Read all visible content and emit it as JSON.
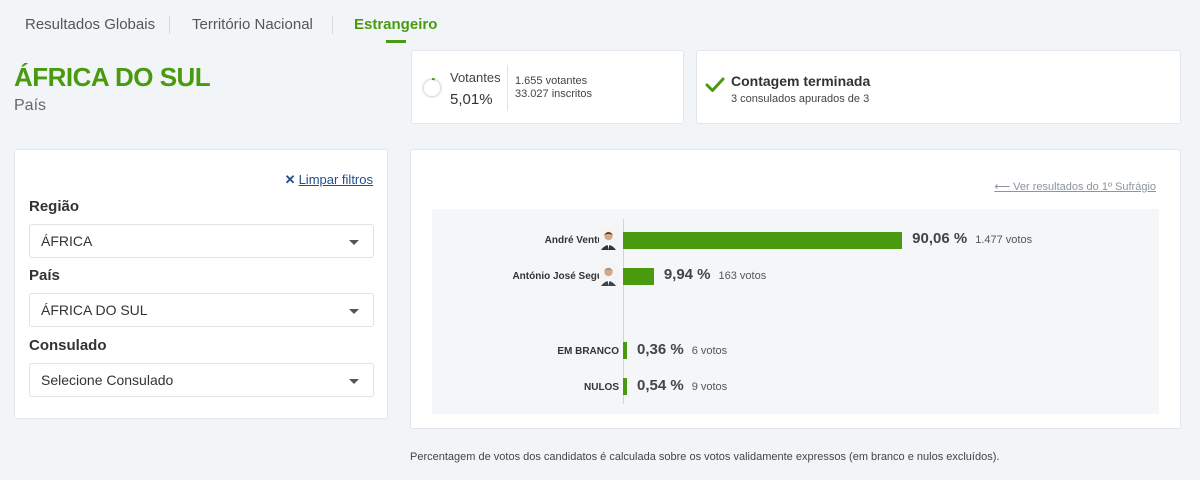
{
  "tabs": [
    {
      "label": "Resultados Globais",
      "active": false
    },
    {
      "label": "Território Nacional",
      "active": false
    },
    {
      "label": "Estrangeiro",
      "active": true
    }
  ],
  "place": {
    "title": "ÁFRICA DO SUL",
    "subtitle": "País"
  },
  "votantes": {
    "label": "Votantes",
    "percent": "5,01%",
    "percent_value": 5.01,
    "votes": "1.655 votantes",
    "registered": "33.027 inscritos"
  },
  "count_status": {
    "title": "Contagem terminada",
    "subtitle": "3 consulados apurados de 3"
  },
  "filters": {
    "clear_label": "Limpar filtros",
    "regiao": {
      "label": "Região",
      "value": "ÁFRICA"
    },
    "pais": {
      "label": "País",
      "value": "ÁFRICA DO SUL"
    },
    "consulado": {
      "label": "Consulado",
      "value": "Selecione Consulado"
    }
  },
  "results": {
    "back_link": "Ver resultados do 1º Sufrágio",
    "candidates": [
      {
        "name": "André Ventura",
        "percent": "90,06 %",
        "percent_value": 90.06,
        "votes": "1.477 votos"
      },
      {
        "name": "António José Seguro",
        "percent": "9,94 %",
        "percent_value": 9.94,
        "votes": "163 votos"
      }
    ],
    "others": [
      {
        "name": "EM BRANCO",
        "percent": "0,36 %",
        "percent_value": 0.36,
        "votes": "6 votos"
      },
      {
        "name": "NULOS",
        "percent": "0,54 %",
        "percent_value": 0.54,
        "votes": "9 votos"
      }
    ]
  },
  "footnote": "Percentagem de votos dos candidatos é calculada sobre os votos validamente expressos (em branco e nulos excluídos).",
  "colors": {
    "accent": "#4a9a10",
    "link": "#1f4e8c"
  },
  "icons": {
    "ring": "progress-ring-icon",
    "check": "check-icon",
    "clear": "close-icon",
    "back": "arrow-left-icon",
    "caret": "chevron-down-icon"
  }
}
